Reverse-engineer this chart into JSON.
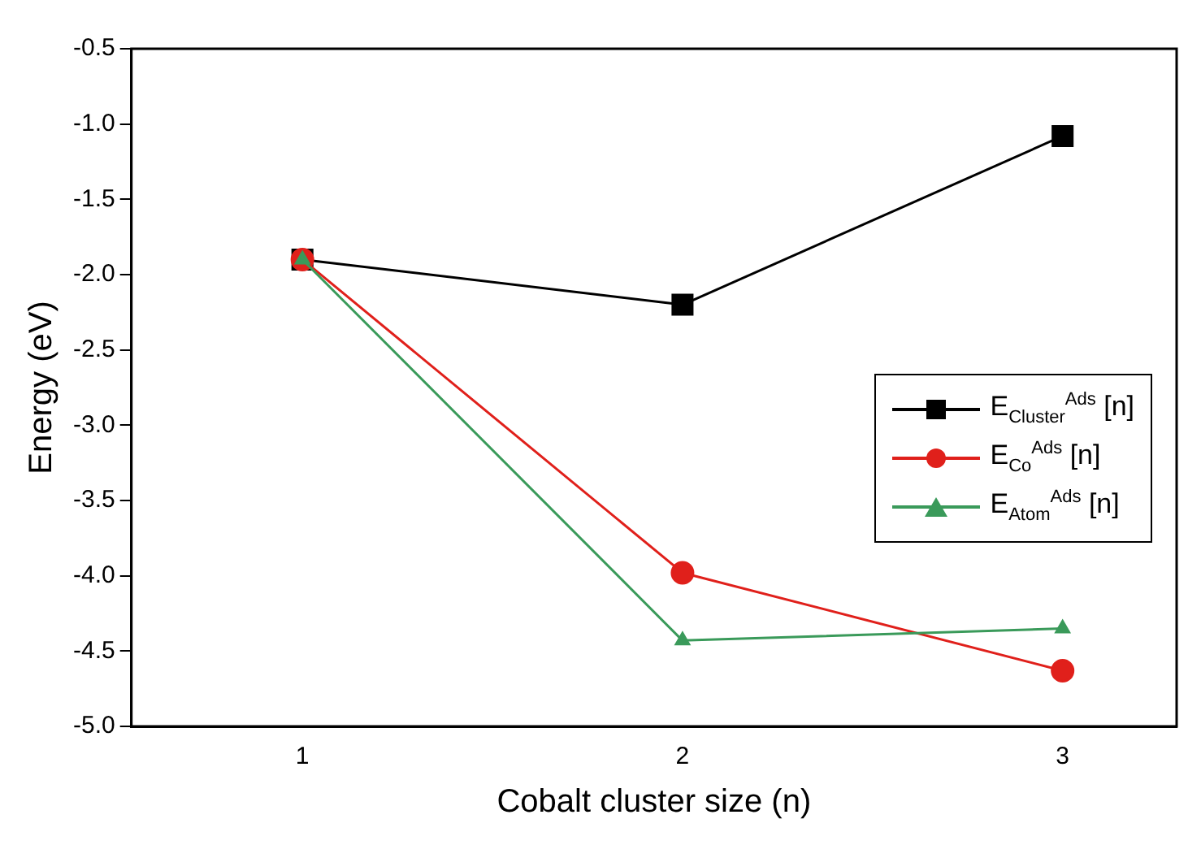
{
  "chart_data": {
    "type": "line",
    "xlabel": "Cobalt cluster size (n)",
    "ylabel": "Energy (eV)",
    "x": [
      1,
      2,
      3
    ],
    "series": [
      {
        "name": "E$_{Cluster}$$^{Ads}$ [n]",
        "color": "#000000",
        "marker": "square",
        "values": [
          -1.9,
          -2.2,
          -1.08
        ]
      },
      {
        "name": "E$_{Co}$$^{Ads}$ [n]",
        "color": "#e0201b",
        "marker": "circle",
        "values": [
          -1.9,
          -3.98,
          -4.63
        ]
      },
      {
        "name": "E$_{Atom}$$^{Ads}$ [n]",
        "color": "#3a9a5a",
        "marker": "triangle",
        "values": [
          -1.9,
          -4.43,
          -4.35
        ]
      }
    ],
    "xlim": [
      0.55,
      3.3
    ],
    "xticks": [
      1,
      2,
      3
    ],
    "ylim": [
      -5,
      -0.5
    ],
    "yticks": [
      {
        "value": -5,
        "label": "-5.0"
      },
      -4.5,
      {
        "value": -4,
        "label": "-4.0"
      },
      -3.5,
      {
        "value": -3,
        "label": "-3.0"
      },
      -2.5,
      {
        "value": -2,
        "label": "-2.0"
      },
      -1.5,
      {
        "value": -1,
        "label": "-1.0"
      },
      -0.5
    ],
    "grid": false,
    "legend": "right",
    "line_style": "solid"
  }
}
